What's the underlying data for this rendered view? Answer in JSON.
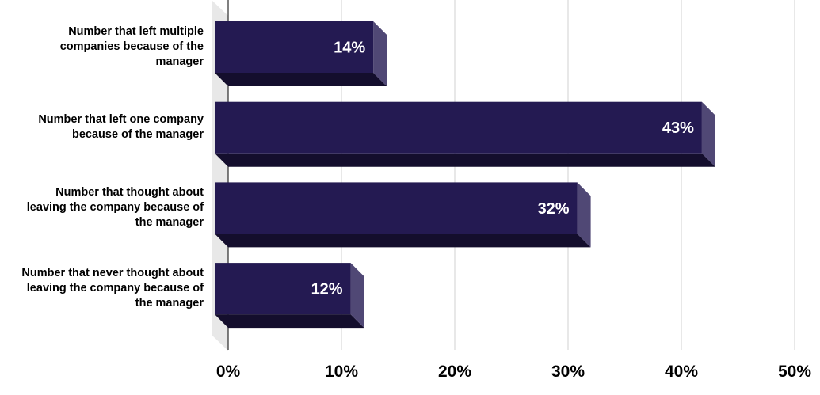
{
  "chart_data": {
    "type": "bar3d-horizontal",
    "categories": [
      "Number that left multiple companies because of the manager",
      "Number that left one company because of the manager",
      "Number that thought about leaving the company because of the manager",
      "Number that never thought about leaving the company because of the manager"
    ],
    "values": [
      14,
      43,
      32,
      12
    ],
    "value_labels": [
      "14%",
      "43%",
      "32%",
      "12%"
    ],
    "color": "#241a52",
    "xlim": [
      0,
      50
    ],
    "xticks": [
      {
        "value": 0,
        "label": "0%"
      },
      {
        "value": 10,
        "label": "10%"
      },
      {
        "value": 20,
        "label": "20%"
      },
      {
        "value": 30,
        "label": "30%"
      },
      {
        "value": 40,
        "label": "40%"
      },
      {
        "value": 50,
        "label": "50%"
      }
    ],
    "grid": true
  }
}
